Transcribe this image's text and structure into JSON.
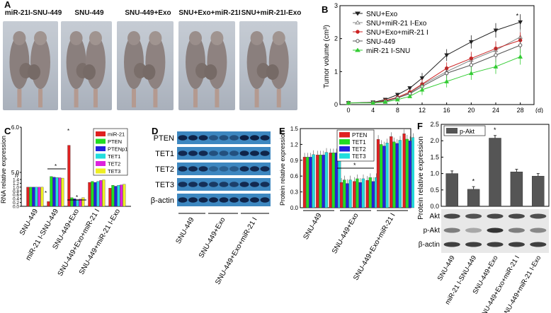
{
  "panels": {
    "A": {
      "label": "A",
      "groups": [
        "miR-21I-SNU-449",
        "SNU-449",
        "SNU-449+Exo",
        "SNU+Exo+miR-21I",
        "SNU+miR-21I-Exo"
      ]
    },
    "D": {
      "label": "D",
      "bands": [
        "PTEN",
        "TET1",
        "TET2",
        "TET3",
        "β-actin"
      ],
      "groups": [
        "SNU-449",
        "SNU-449+Exo",
        "SNU-449+Exo+miR-21 I"
      ]
    },
    "F_blot": {
      "bands": [
        "Akt",
        "p-Akt",
        "β-actin"
      ]
    }
  },
  "chart_data": [
    {
      "panel": "B",
      "type": "line",
      "ylabel": "Tumor volume (cm³)",
      "xunit": "(d)",
      "x": [
        0,
        4,
        6,
        8,
        10,
        12,
        16,
        20,
        24,
        28
      ],
      "xticks": [
        0,
        4,
        8,
        12,
        16,
        20,
        24,
        28
      ],
      "ylim": [
        0,
        3
      ],
      "yticks": [
        0,
        1,
        2,
        3
      ],
      "annotation": "*",
      "series": [
        {
          "name": "SNU+Exo",
          "color": "#222222",
          "marker": "triangle-down",
          "values": [
            0.05,
            0.07,
            0.15,
            0.3,
            0.5,
            0.8,
            1.5,
            1.9,
            2.25,
            2.5
          ]
        },
        {
          "name": "SNU+miR-21 I-Exo",
          "color": "#888888",
          "marker": "triangle-up-open",
          "values": [
            0.05,
            0.06,
            0.1,
            0.2,
            0.35,
            0.6,
            1.0,
            1.35,
            1.65,
            2.05
          ]
        },
        {
          "name": "SNU+Exo+miR-21 I",
          "color": "#cc2222",
          "marker": "circle",
          "values": [
            0.05,
            0.06,
            0.12,
            0.22,
            0.38,
            0.62,
            1.1,
            1.4,
            1.7,
            1.95
          ]
        },
        {
          "name": "SNU-449",
          "color": "#555555",
          "marker": "circle-open",
          "values": [
            0.05,
            0.06,
            0.1,
            0.2,
            0.33,
            0.55,
            0.95,
            1.2,
            1.5,
            1.8
          ]
        },
        {
          "name": "miR-21 I-SNU",
          "color": "#33cc33",
          "marker": "triangle-up",
          "values": [
            0.05,
            0.05,
            0.08,
            0.15,
            0.25,
            0.45,
            0.7,
            0.95,
            1.15,
            1.45
          ]
        }
      ]
    },
    {
      "panel": "C",
      "type": "bar",
      "ylabel": "RNA relative expression",
      "categories": [
        "SNU-449",
        "miR-21 I-SNU-449",
        "SNU-449+Exo",
        "SNU-449+Exo+miR-21 I",
        "SNU-449+miR-21 I-Exo"
      ],
      "yticks_lower": [
        "0.0",
        "0.2",
        "0.4",
        "0.6",
        "0.8",
        "1.0",
        "1.2",
        "1.4"
      ],
      "yticks_upper": [
        "5.0",
        "6.0"
      ],
      "annotations": [
        "*",
        "*",
        "*",
        "*"
      ],
      "series": [
        {
          "name": "miR-21",
          "color": "#e02020",
          "values": [
            1.0,
            0.25,
            5.6,
            1.25,
            0.95
          ]
        },
        {
          "name": "PTEN",
          "color": "#22dd22",
          "values": [
            1.0,
            2.9,
            0.45,
            1.3,
            1.1
          ]
        },
        {
          "name": "PTENp1",
          "color": "#2222dd",
          "values": [
            1.0,
            2.6,
            0.4,
            1.25,
            1.05
          ]
        },
        {
          "name": "TET1",
          "color": "#22dddd",
          "values": [
            1.0,
            2.4,
            0.35,
            1.3,
            1.1
          ]
        },
        {
          "name": "TET2",
          "color": "#dd22dd",
          "values": [
            1.0,
            2.3,
            0.38,
            1.35,
            1.12
          ]
        },
        {
          "name": "TET3",
          "color": "#eeee22",
          "values": [
            1.0,
            2.1,
            0.45,
            1.38,
            1.15
          ]
        }
      ]
    },
    {
      "panel": "E",
      "type": "bar",
      "ylabel": "Protein relative expression",
      "categories": [
        "SNU-449",
        "SNU-449+Exo",
        "SNU-449+Exo+miR-21 I"
      ],
      "ylim": [
        0,
        1.5
      ],
      "yticks": [
        "0.0",
        "0.3",
        "0.6",
        "0.9",
        "1.2",
        "1.5"
      ],
      "annotation": "*",
      "series": [
        {
          "name": "PTEN",
          "color": "#e02020",
          "values": [
            1.0,
            0.5,
            1.35
          ]
        },
        {
          "name": "TET1",
          "color": "#22dd22",
          "values": [
            1.0,
            0.55,
            1.25
          ]
        },
        {
          "name": "TET2",
          "color": "#2222dd",
          "values": [
            1.0,
            0.48,
            1.22
          ]
        },
        {
          "name": "TET3",
          "color": "#22dddd",
          "values": [
            1.05,
            0.55,
            1.28
          ]
        }
      ]
    },
    {
      "panel": "F",
      "type": "bar",
      "ylabel": "Protein relative expression",
      "categories": [
        "SNU-449",
        "miR-21 I-SNU-449",
        "SNU-449+Exo",
        "SNU-449+Exo+miR-21 I",
        "SNU-449+miR-21 I-Exo"
      ],
      "ylim": [
        0,
        2.5
      ],
      "yticks": [
        "0.0",
        "0.5",
        "1.0",
        "1.5",
        "2.0",
        "2.5"
      ],
      "annotations": [
        "*",
        "*"
      ],
      "series": [
        {
          "name": "p-Akt",
          "color": "#555555",
          "values": [
            1.0,
            0.52,
            2.08,
            1.05,
            0.92
          ]
        }
      ]
    }
  ]
}
